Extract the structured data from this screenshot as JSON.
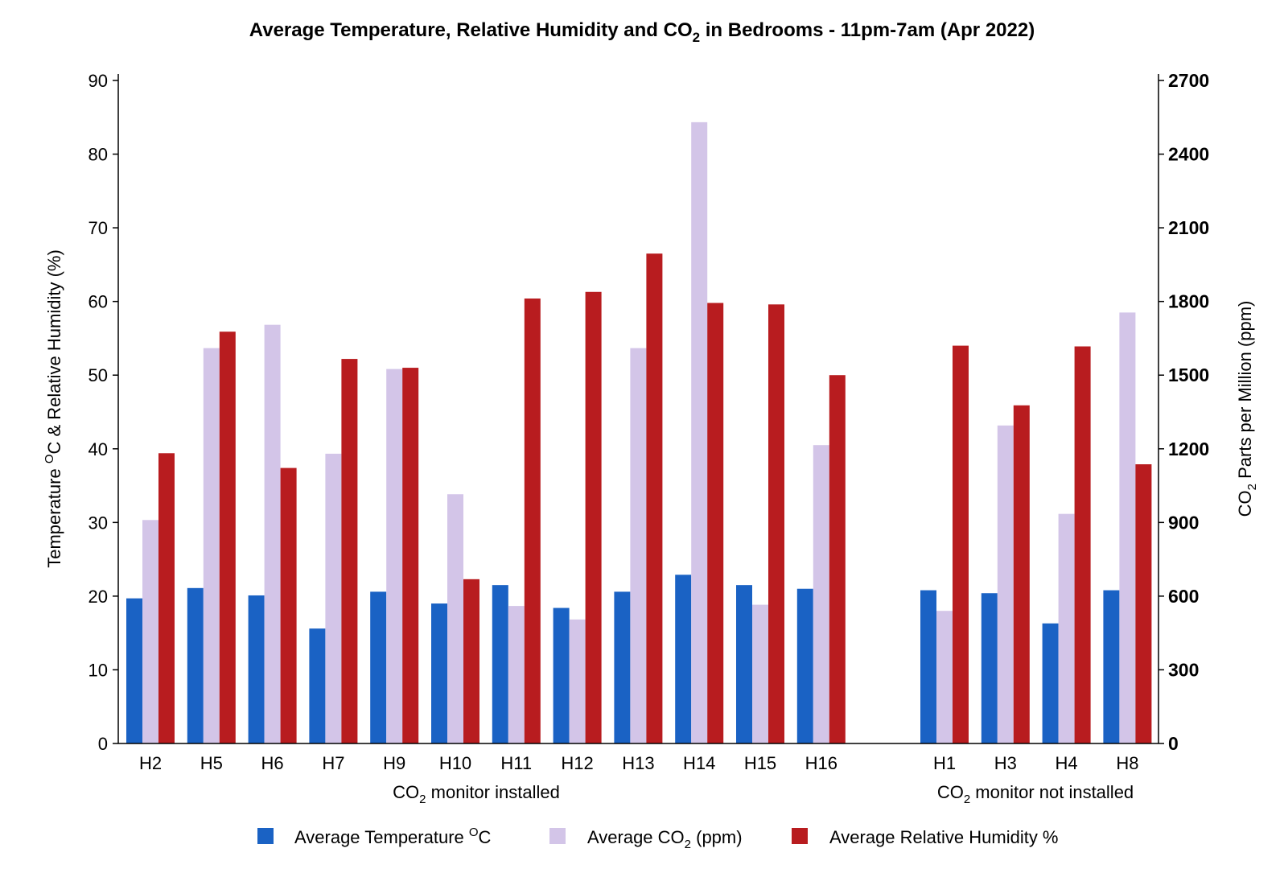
{
  "chart_data": {
    "type": "bar",
    "title_main": "Average Temperature, Relative Humidity and CO",
    "title_sub": "2",
    "title_rest": " in Bedrooms - 11pm-7am (Apr 2022)",
    "categories": [
      "H2",
      "H5",
      "H6",
      "H7",
      "H9",
      "H10",
      "H11",
      "H12",
      "H13",
      "H14",
      "H15",
      "H16",
      "H1",
      "H3",
      "H4",
      "H8"
    ],
    "groups": [
      {
        "label_pre": "CO",
        "label_sub": "2",
        "label_post": " monitor installed",
        "count": 12
      },
      {
        "label_pre": "CO",
        "label_sub": "2",
        "label_post": " monitor not installed",
        "count": 4
      }
    ],
    "series": [
      {
        "name_pre": "Average Temperature ",
        "name_sup": "O",
        "name_post": "C",
        "axis": "left",
        "color": "#1a62c4",
        "values": [
          19.7,
          21.1,
          20.1,
          15.6,
          20.6,
          19.0,
          21.5,
          18.4,
          20.6,
          22.9,
          21.5,
          21.0,
          20.8,
          20.4,
          16.3,
          20.8
        ]
      },
      {
        "name_pre": "Average CO",
        "name_sub": "2",
        "name_post": " (ppm)",
        "axis": "right",
        "color": "#d3c5e8",
        "values": [
          910,
          1610,
          1705,
          1180,
          1525,
          1015,
          560,
          505,
          1610,
          2530,
          565,
          1215,
          540,
          1295,
          935,
          1755
        ]
      },
      {
        "name_pre": "Average Relative Humidity %",
        "axis": "left",
        "color": "#b81c1f",
        "values": [
          39.4,
          55.9,
          37.4,
          52.2,
          51.0,
          22.3,
          60.4,
          61.3,
          66.5,
          59.8,
          59.6,
          50.0,
          54.0,
          45.9,
          53.9,
          37.9
        ]
      }
    ],
    "y_left": {
      "label_pre": "Temperature ",
      "label_sup": "O",
      "label_post": "C & Relative Humidity (%)",
      "ylim": [
        0,
        90
      ],
      "ticks": [
        "0",
        "10",
        "20",
        "30",
        "40",
        "50",
        "60",
        "70",
        "80",
        "90"
      ]
    },
    "y_right": {
      "label_pre": "CO",
      "label_sub": "2",
      "label_post": " Parts per Million (ppm)",
      "ylim": [
        0,
        2700
      ],
      "ticks": [
        "0",
        "300",
        "600",
        "900",
        "1200",
        "1500",
        "1800",
        "2100",
        "2400",
        "2700"
      ]
    },
    "legend_position": "bottom",
    "grid": false
  }
}
